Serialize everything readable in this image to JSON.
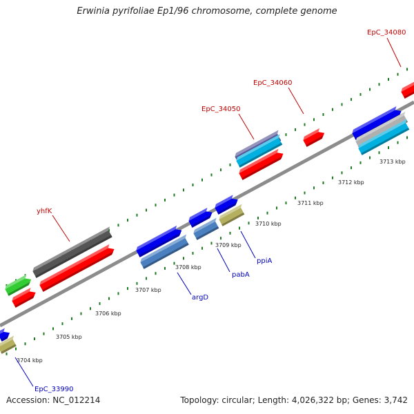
{
  "title": "Erwinia pyrifoliae Ep1/96 chromosome, complete genome",
  "footer": {
    "accession": "Accession: NC_012214",
    "summary": "Topology: circular; Length: 4,026,322 bp; Genes: 3,742"
  },
  "colors": {
    "backbone": "#8c8c8c",
    "tick": "#1e7a1e",
    "label_top": "#c00000",
    "label_bottom": "#0000c0",
    "red": "#ff0000",
    "blue": "#0000ee",
    "gray": "#555555",
    "green": "#33cc33",
    "olive": "#b5b060",
    "steel": "#4a7fc0",
    "cyan": "#00b0e0",
    "silver": "#b0b0b0",
    "slate": "#5a5a9a"
  },
  "kbp_labels": [
    "3704 kbp",
    "3705 kbp",
    "3706 kbp",
    "3707 kbp",
    "3708 kbp",
    "3709 kbp",
    "3710 kbp",
    "3711 kbp",
    "3712 kbp",
    "3713 kbp"
  ],
  "gene_labels": {
    "top": [
      "yhfK",
      "EpC_34050",
      "EpC_34060",
      "EpC_34080"
    ],
    "bottom": [
      "EpC_33990",
      "argD",
      "pabA",
      "ppiA"
    ]
  }
}
